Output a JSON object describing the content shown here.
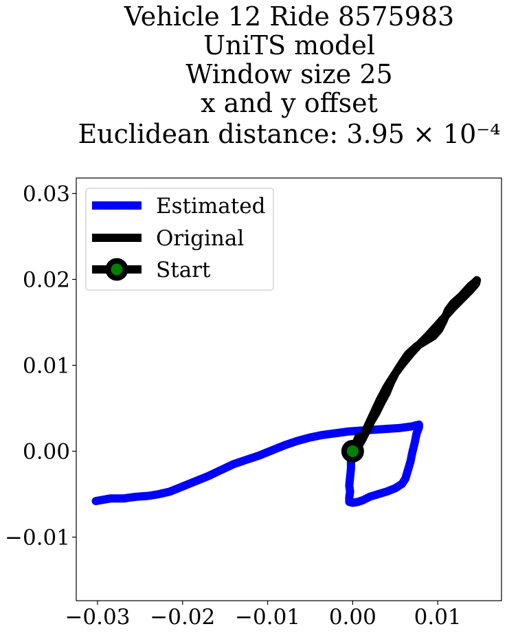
{
  "chart_data": {
    "type": "line",
    "title_lines": [
      "Vehicle 12 Ride 8575983",
      "UniTS model",
      "Window size 25",
      "x and y offset",
      "Euclidean distance: 3.95 × 10⁻⁴"
    ],
    "xlim": [
      -0.0325,
      0.0175
    ],
    "ylim": [
      -0.0174,
      0.0318
    ],
    "xticks": [
      -0.03,
      -0.02,
      -0.01,
      0.0,
      0.01
    ],
    "xtick_labels": [
      "−0.03",
      "−0.02",
      "−0.01",
      "0.00",
      "0.01"
    ],
    "yticks": [
      -0.01,
      0.0,
      0.01,
      0.02,
      0.03
    ],
    "ytick_labels": [
      "−0.01",
      "0.00",
      "0.01",
      "0.02",
      "0.03"
    ],
    "grid": false,
    "legend": {
      "position": "upper-left",
      "entries": [
        "Estimated",
        "Original",
        "Start"
      ]
    },
    "series": [
      {
        "name": "Estimated",
        "color": "#0000ff",
        "points": [
          [
            -0.0302,
            -0.0058
          ],
          [
            -0.0285,
            -0.0055
          ],
          [
            -0.027,
            -0.0055
          ],
          [
            -0.0255,
            -0.0053
          ],
          [
            -0.024,
            -0.0052
          ],
          [
            -0.0228,
            -0.005
          ],
          [
            -0.0215,
            -0.0047
          ],
          [
            -0.02,
            -0.0041
          ],
          [
            -0.0185,
            -0.0035
          ],
          [
            -0.017,
            -0.0029
          ],
          [
            -0.0155,
            -0.0022
          ],
          [
            -0.014,
            -0.0015
          ],
          [
            -0.0125,
            -0.001
          ],
          [
            -0.011,
            -0.0005
          ],
          [
            -0.0095,
            0.0001
          ],
          [
            -0.008,
            0.0007
          ],
          [
            -0.0065,
            0.0012
          ],
          [
            -0.005,
            0.0016
          ],
          [
            -0.0035,
            0.0019
          ],
          [
            -0.002,
            0.0021
          ],
          [
            -0.0005,
            0.0023
          ],
          [
            0.001,
            0.0024
          ],
          [
            0.0025,
            0.0025
          ],
          [
            0.004,
            0.0026
          ],
          [
            0.0055,
            0.0027
          ],
          [
            0.007,
            0.0029
          ],
          [
            0.0078,
            0.0031
          ],
          [
            0.0078,
            0.0028
          ],
          [
            0.0075,
            0.002
          ],
          [
            0.0073,
            0.001
          ],
          [
            0.007,
            -0.0002
          ],
          [
            0.0068,
            -0.0012
          ],
          [
            0.0065,
            -0.0022
          ],
          [
            0.0062,
            -0.0032
          ],
          [
            0.0058,
            -0.0038
          ],
          [
            0.005,
            -0.0043
          ],
          [
            0.004,
            -0.0047
          ],
          [
            0.003,
            -0.005
          ],
          [
            0.002,
            -0.0053
          ],
          [
            0.0012,
            -0.0057
          ],
          [
            0.0006,
            -0.0059
          ],
          [
            0.0,
            -0.006
          ],
          [
            -0.0004,
            -0.0059
          ],
          [
            -0.0004,
            -0.0054
          ],
          [
            -0.0003,
            -0.0047
          ],
          [
            -0.0004,
            -0.004
          ],
          [
            -0.0003,
            -0.003
          ],
          [
            -0.0002,
            -0.002
          ],
          [
            -0.0002,
            -0.001
          ],
          [
            0.0,
            0.0
          ]
        ]
      },
      {
        "name": "Original",
        "color": "#000000",
        "points": [
          [
            0.0,
            0.0
          ],
          [
            0.0004,
            0.0003
          ],
          [
            0.0008,
            0.0008
          ],
          [
            0.0012,
            0.0015
          ],
          [
            0.0017,
            0.0025
          ],
          [
            0.0022,
            0.0035
          ],
          [
            0.0028,
            0.0045
          ],
          [
            0.0034,
            0.0057
          ],
          [
            0.004,
            0.0068
          ],
          [
            0.0045,
            0.008
          ],
          [
            0.0051,
            0.0092
          ],
          [
            0.0058,
            0.0103
          ],
          [
            0.0065,
            0.0113
          ],
          [
            0.0075,
            0.0122
          ],
          [
            0.0085,
            0.0128
          ],
          [
            0.0095,
            0.0134
          ],
          [
            0.0102,
            0.0142
          ],
          [
            0.0107,
            0.0152
          ],
          [
            0.0112,
            0.0164
          ],
          [
            0.0118,
            0.0172
          ],
          [
            0.0128,
            0.0181
          ],
          [
            0.0138,
            0.0192
          ],
          [
            0.0144,
            0.0197
          ],
          [
            0.0146,
            0.0199
          ],
          [
            0.0145,
            0.0195
          ],
          [
            0.0138,
            0.0187
          ],
          [
            0.0128,
            0.0177
          ],
          [
            0.0118,
            0.0167
          ],
          [
            0.0108,
            0.0156
          ],
          [
            0.0098,
            0.0145
          ],
          [
            0.0088,
            0.0134
          ],
          [
            0.0078,
            0.0124
          ],
          [
            0.0068,
            0.0113
          ],
          [
            0.0058,
            0.0101
          ],
          [
            0.0049,
            0.0089
          ],
          [
            0.004,
            0.0075
          ],
          [
            0.0032,
            0.006
          ],
          [
            0.0025,
            0.0045
          ],
          [
            0.0018,
            0.003
          ],
          [
            0.0013,
            0.0018
          ],
          [
            0.0009,
            0.001
          ],
          [
            0.0006,
            0.0006
          ],
          [
            0.0005,
            0.0012
          ],
          [
            0.0007,
            0.0017
          ],
          [
            0.0009,
            0.0012
          ],
          [
            0.0005,
            0.0005
          ],
          [
            0.0,
            0.0
          ]
        ]
      },
      {
        "name": "Start",
        "color": "#000000",
        "marker_face": "#008000",
        "points": [
          [
            0.0,
            0.0
          ]
        ]
      }
    ]
  }
}
